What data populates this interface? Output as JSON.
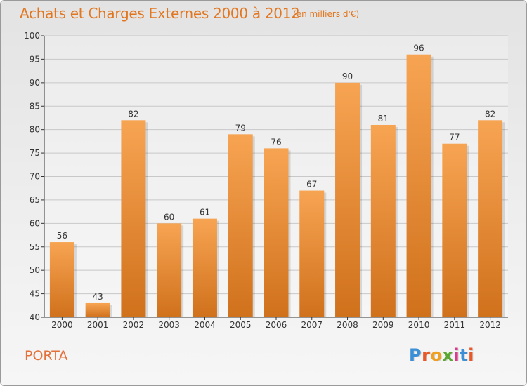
{
  "header": {
    "title": "Achats et Charges Externes 2000 à 2012",
    "subtitle": "(en milliers d'€)"
  },
  "footer": {
    "commune": "PORTA",
    "logo_text": "Proxiti",
    "logo_colors": [
      "#3b8fd6",
      "#e8592a",
      "#f0a020",
      "#5aa832",
      "#d93a8c",
      "#3b8fd6",
      "#e8592a"
    ]
  },
  "colors": {
    "bar_top": "#f7a452",
    "bar_bottom": "#d0711c",
    "accent": "#e2761f"
  },
  "chart_data": {
    "type": "bar",
    "categories": [
      "2000",
      "2001",
      "2002",
      "2003",
      "2004",
      "2005",
      "2006",
      "2007",
      "2008",
      "2009",
      "2010",
      "2011",
      "2012"
    ],
    "values": [
      56,
      43,
      82,
      60,
      61,
      79,
      76,
      67,
      90,
      81,
      96,
      77,
      82
    ],
    "data_labels": [
      "56",
      "43",
      "82",
      "60",
      "61",
      "79",
      "76",
      "67",
      "90",
      "81",
      "96",
      "77",
      "82"
    ],
    "y_ticks": [
      40,
      45,
      50,
      55,
      60,
      65,
      70,
      75,
      80,
      85,
      90,
      95,
      100
    ],
    "ylim": [
      40,
      100
    ],
    "grid": true
  }
}
